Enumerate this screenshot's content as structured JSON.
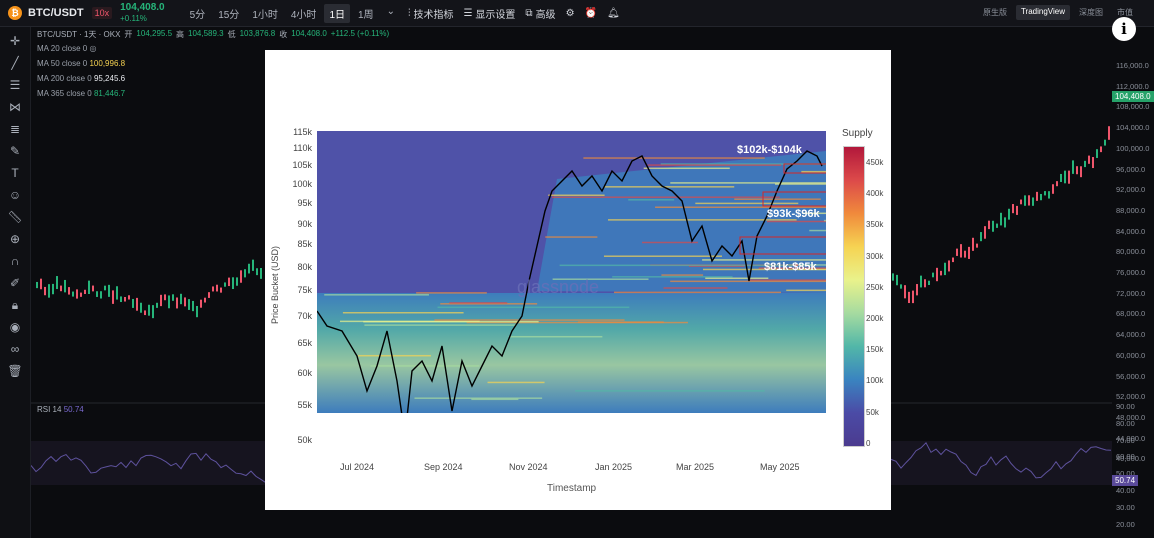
{
  "header": {
    "symbol": "BTC/USDT",
    "leverage": "10x",
    "price": "104,408.0",
    "change": "+0.11%",
    "timeframes": [
      "5分",
      "15分",
      "1小时",
      "4小时",
      "1日",
      "1周"
    ],
    "active_timeframe": "1日",
    "tools": [
      "技术指标",
      "显示设置",
      "高级"
    ],
    "views": [
      "原生版",
      "TradingView",
      "深度图",
      "市值"
    ],
    "active_view": "TradingView"
  },
  "infobar": {
    "title": "BTC/USDT · 1天 · OKX",
    "open_label": "开",
    "open": "104,295.5",
    "high_label": "高",
    "high": "104,589.3",
    "low_label": "低",
    "low": "103,876.8",
    "close_label": "收",
    "close": "104,408.0",
    "change": "+112.5 (+0.11%)"
  },
  "ma": [
    {
      "label": "MA 20 close 0",
      "value": ""
    },
    {
      "label": "MA 50 close 0",
      "value": "100,996.8"
    },
    {
      "label": "MA 200 close 0",
      "value": "95,245.6"
    },
    {
      "label": "MA 365 close 0",
      "value": "81,446.7"
    }
  ],
  "ma_colors": [
    "#aab0ba",
    "#f6d352",
    "#e8eaee",
    "#26b57a"
  ],
  "rsi": {
    "label": "RSI 14",
    "value": "50.74",
    "tag": "50.74"
  },
  "price_axis": [
    "116,000.0",
    "112,000.0",
    "108,000.0",
    "104,000.0",
    "100,000.0",
    "96,000.0",
    "92,000.0",
    "88,000.0",
    "84,000.0",
    "80,000.0",
    "76,000.0",
    "72,000.0",
    "68,000.0",
    "64,000.0",
    "60,000.0",
    "56,000.0",
    "52,000.0",
    "48,000.0",
    "44,000.0",
    "40,000.0"
  ],
  "rsi_axis": [
    "90.00",
    "80.00",
    "70.00",
    "60.00",
    "50.00",
    "40.00",
    "30.00",
    "20.00"
  ],
  "price_tag": "104,408.0",
  "overlay": {
    "y_axis_label": "Price Bucket (USD)",
    "x_axis_label": "Timestamp",
    "colorbar_title": "Supply",
    "watermark": "glassnode",
    "y_ticks": [
      "115k",
      "110k",
      "105k",
      "100k",
      "95k",
      "90k",
      "85k",
      "80k",
      "75k",
      "70k",
      "65k",
      "60k",
      "55k",
      "50k"
    ],
    "x_ticks": [
      "Jul 2024",
      "Sep 2024",
      "Nov 2024",
      "Jan 2025",
      "Mar 2025",
      "May 2025"
    ],
    "colorbar_ticks": [
      "450k",
      "400k",
      "350k",
      "300k",
      "250k",
      "200k",
      "150k",
      "100k",
      "50k",
      "0"
    ],
    "annotations": [
      "$102k-$104k",
      "$93k-$96k",
      "$81k-$85k"
    ]
  },
  "colors": {
    "up": "#26b57a",
    "down": "#f0566c",
    "accent": "#26a269",
    "rsi": "#5a4a9a"
  }
}
